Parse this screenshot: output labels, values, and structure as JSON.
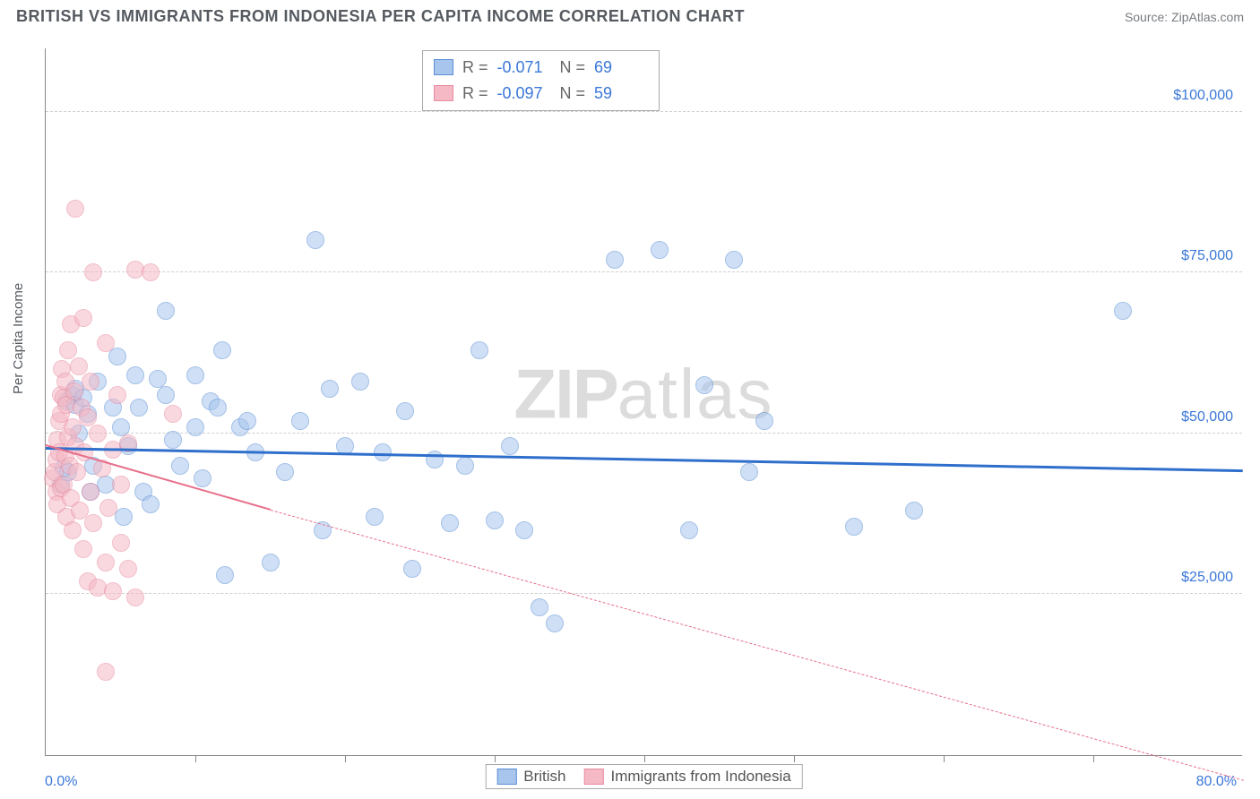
{
  "title": "BRITISH VS IMMIGRANTS FROM INDONESIA PER CAPITA INCOME CORRELATION CHART",
  "source": "Source: ZipAtlas.com",
  "watermark_bold": "ZIP",
  "watermark_light": "atlas",
  "ylabel": "Per Capita Income",
  "xlabel_start": "0.0%",
  "xlabel_end": "80.0%",
  "chart": {
    "type": "scatter",
    "xlim": [
      0,
      80
    ],
    "ylim": [
      0,
      110000
    ],
    "ytick_values": [
      25000,
      50000,
      75000,
      100000
    ],
    "ytick_labels": [
      "$25,000",
      "$50,000",
      "$75,000",
      "$100,000"
    ],
    "xtick_positions": [
      10,
      20,
      30,
      40,
      50,
      60,
      70
    ],
    "grid_color": "#cfcfcf",
    "background_color": "#ffffff",
    "axis_color": "#888888",
    "text_color": "#555a60",
    "value_color": "#3a77d8",
    "marker_radius": 10,
    "marker_opacity": 0.55,
    "series": [
      {
        "name": "British",
        "fill": "#a8c6ed",
        "stroke": "#5a8fd6",
        "line_color": "#2f6fcc",
        "line_width": 3,
        "line_dash": "solid",
        "r_label": "R =",
        "r_value": "-0.071",
        "n_label": "N =",
        "n_value": "69",
        "trend": {
          "x1": 0,
          "y1": 47500,
          "x2": 80,
          "y2": 44000
        },
        "points": [
          [
            1.0,
            42000
          ],
          [
            1.2,
            44500
          ],
          [
            1.5,
            44000
          ],
          [
            1.4,
            55000
          ],
          [
            1.8,
            56000
          ],
          [
            2.0,
            57000
          ],
          [
            2.0,
            54500
          ],
          [
            2.5,
            55500
          ],
          [
            2.2,
            50000
          ],
          [
            2.8,
            53000
          ],
          [
            3.0,
            41000
          ],
          [
            3.2,
            45000
          ],
          [
            3.5,
            58000
          ],
          [
            4.0,
            42000
          ],
          [
            4.5,
            54000
          ],
          [
            4.8,
            62000
          ],
          [
            5.0,
            51000
          ],
          [
            5.2,
            37000
          ],
          [
            5.5,
            48000
          ],
          [
            6.0,
            59000
          ],
          [
            6.2,
            54000
          ],
          [
            6.5,
            41000
          ],
          [
            7.0,
            39000
          ],
          [
            7.5,
            58500
          ],
          [
            8.0,
            56000
          ],
          [
            8.0,
            69000
          ],
          [
            8.5,
            49000
          ],
          [
            9.0,
            45000
          ],
          [
            10.0,
            59000
          ],
          [
            10.0,
            51000
          ],
          [
            10.5,
            43000
          ],
          [
            11.0,
            55000
          ],
          [
            11.5,
            54000
          ],
          [
            11.8,
            63000
          ],
          [
            12.0,
            28000
          ],
          [
            13.0,
            51000
          ],
          [
            13.5,
            52000
          ],
          [
            14.0,
            47000
          ],
          [
            15.0,
            30000
          ],
          [
            16.0,
            44000
          ],
          [
            17.0,
            52000
          ],
          [
            18.0,
            80000
          ],
          [
            18.5,
            35000
          ],
          [
            19.0,
            57000
          ],
          [
            20.0,
            48000
          ],
          [
            21.0,
            58000
          ],
          [
            22.0,
            37000
          ],
          [
            22.5,
            47000
          ],
          [
            24.0,
            53500
          ],
          [
            24.5,
            29000
          ],
          [
            26.0,
            46000
          ],
          [
            27.0,
            36000
          ],
          [
            28.0,
            45000
          ],
          [
            29.0,
            63000
          ],
          [
            30.0,
            36500
          ],
          [
            31.0,
            48000
          ],
          [
            32.0,
            35000
          ],
          [
            33.0,
            23000
          ],
          [
            34.0,
            20500
          ],
          [
            38.0,
            77000
          ],
          [
            41.0,
            78500
          ],
          [
            43.0,
            35000
          ],
          [
            44.0,
            57500
          ],
          [
            46.0,
            77000
          ],
          [
            47.0,
            44000
          ],
          [
            48.0,
            52000
          ],
          [
            54.0,
            35500
          ],
          [
            58.0,
            38000
          ],
          [
            72.0,
            69000
          ]
        ]
      },
      {
        "name": "Immigrants from Indonesia",
        "fill": "#f5b9c5",
        "stroke": "#e88ba0",
        "line_color": "#e76f8a",
        "line_width": 2.5,
        "line_dash": "dashed",
        "r_label": "R =",
        "r_value": "-0.097",
        "n_label": "N =",
        "n_value": "59",
        "trend_solid": {
          "x1": 0,
          "y1": 48000,
          "x2": 15,
          "y2": 38000
        },
        "trend_dash": {
          "x1": 15,
          "y1": 38000,
          "x2": 80,
          "y2": -4000
        },
        "points": [
          [
            0.5,
            43000
          ],
          [
            0.6,
            44000
          ],
          [
            0.7,
            46000
          ],
          [
            0.7,
            41000
          ],
          [
            0.8,
            49000
          ],
          [
            0.8,
            39000
          ],
          [
            0.9,
            47000
          ],
          [
            0.9,
            52000
          ],
          [
            1.0,
            56000
          ],
          [
            1.0,
            53000
          ],
          [
            1.0,
            41500
          ],
          [
            1.1,
            60000
          ],
          [
            1.2,
            55500
          ],
          [
            1.2,
            42000
          ],
          [
            1.3,
            58000
          ],
          [
            1.3,
            46500
          ],
          [
            1.4,
            54500
          ],
          [
            1.4,
            37000
          ],
          [
            1.5,
            63000
          ],
          [
            1.5,
            49500
          ],
          [
            1.6,
            45000
          ],
          [
            1.7,
            67000
          ],
          [
            1.7,
            40000
          ],
          [
            1.8,
            51000
          ],
          [
            1.8,
            35000
          ],
          [
            1.9,
            56500
          ],
          [
            2.0,
            85000
          ],
          [
            2.0,
            48000
          ],
          [
            2.1,
            44000
          ],
          [
            2.2,
            60500
          ],
          [
            2.3,
            38000
          ],
          [
            2.4,
            54000
          ],
          [
            2.5,
            68000
          ],
          [
            2.5,
            32000
          ],
          [
            2.6,
            47000
          ],
          [
            2.8,
            52500
          ],
          [
            2.8,
            27000
          ],
          [
            3.0,
            58000
          ],
          [
            3.0,
            41000
          ],
          [
            3.2,
            75000
          ],
          [
            3.2,
            36000
          ],
          [
            3.5,
            50000
          ],
          [
            3.5,
            26000
          ],
          [
            3.8,
            44500
          ],
          [
            4.0,
            64000
          ],
          [
            4.0,
            30000
          ],
          [
            4.2,
            38500
          ],
          [
            4.5,
            47500
          ],
          [
            4.5,
            25500
          ],
          [
            4.8,
            56000
          ],
          [
            5.0,
            33000
          ],
          [
            5.0,
            42000
          ],
          [
            5.5,
            48500
          ],
          [
            5.5,
            29000
          ],
          [
            6.0,
            75500
          ],
          [
            6.0,
            24500
          ],
          [
            7.0,
            75000
          ],
          [
            8.5,
            53000
          ],
          [
            4.0,
            13000
          ]
        ]
      }
    ],
    "bottom_legend": [
      {
        "label": "British",
        "fill": "#a8c6ed",
        "stroke": "#5a8fd6"
      },
      {
        "label": "Immigrants from Indonesia",
        "fill": "#f5b9c5",
        "stroke": "#e88ba0"
      }
    ]
  }
}
